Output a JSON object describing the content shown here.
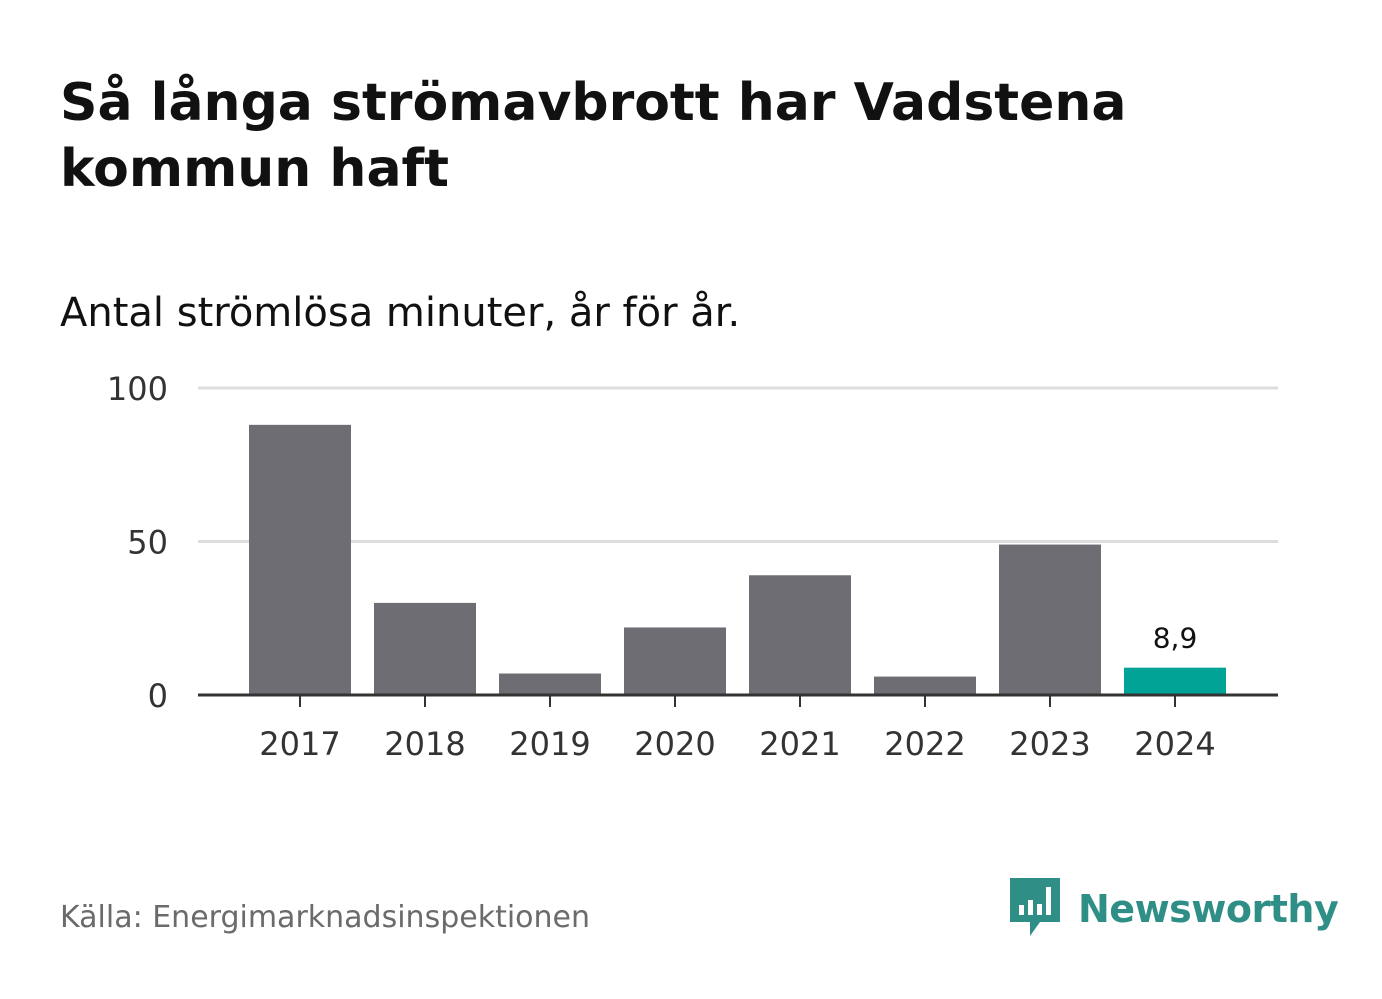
{
  "header": {
    "title": "Så långa strömavbrott har Vadstena kommun haft",
    "subtitle": "Antal strömlösa minuter, år för år."
  },
  "chart_data": {
    "type": "bar",
    "categories": [
      "2017",
      "2018",
      "2019",
      "2020",
      "2021",
      "2022",
      "2023",
      "2024"
    ],
    "values": [
      88,
      30,
      7,
      22,
      39,
      6,
      49,
      8.9
    ],
    "value_labels": [
      "",
      "",
      "",
      "",
      "",
      "",
      "",
      "8,9"
    ],
    "ylim": [
      0,
      100
    ],
    "yticks": [
      "0",
      "50",
      "100"
    ],
    "ytick_values": [
      0,
      50,
      100
    ],
    "grid": true,
    "colors": {
      "bar": "#6e6d73",
      "highlight": "#00a395",
      "grid": "#dddddd",
      "axis": "#333333"
    },
    "highlight_index": 7
  },
  "footer": {
    "source": "Källa: Energimarknadsinspektionen",
    "brand": "Newsworthy",
    "brand_icon": "newsworthy-logo-icon",
    "brand_color": "#2f8f86"
  }
}
